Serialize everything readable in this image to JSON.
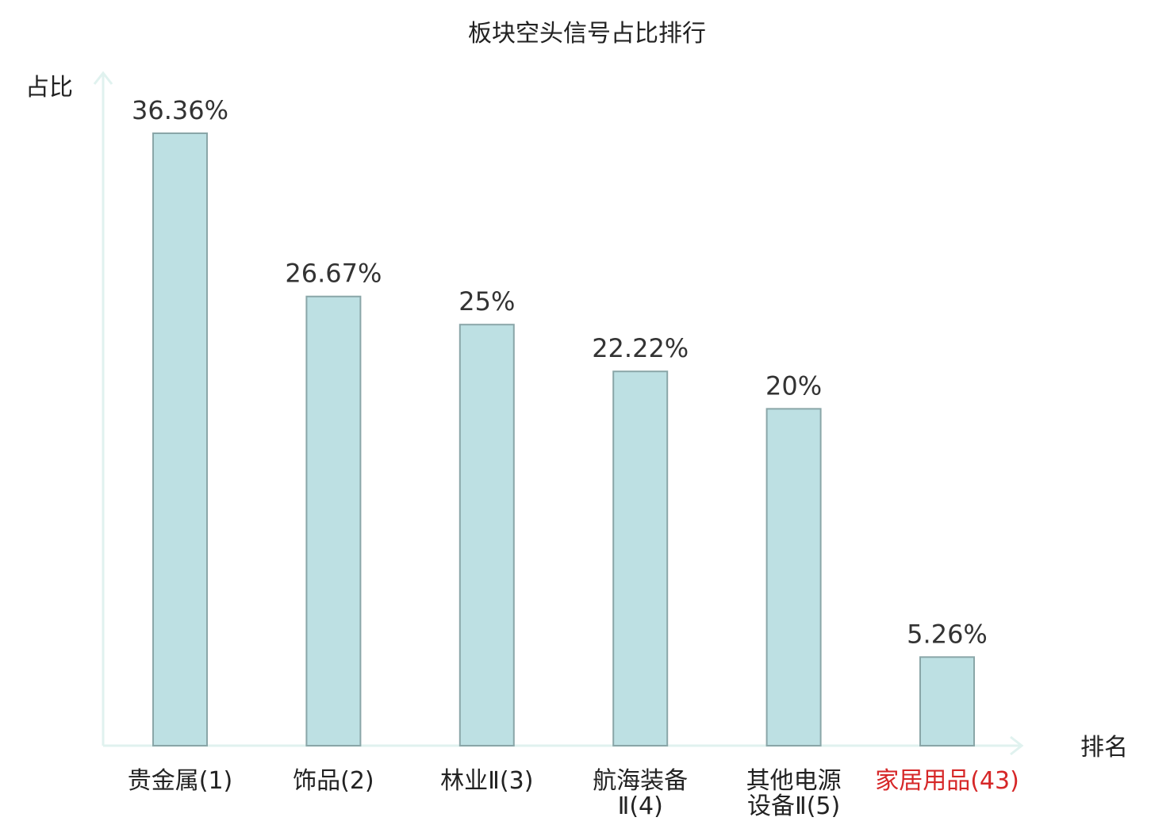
{
  "chart_data": {
    "type": "bar",
    "title": "板块空头信号占比排行",
    "xlabel": "排名",
    "ylabel": "占比",
    "categories": [
      {
        "lines": [
          "贵金属(1)"
        ]
      },
      {
        "lines": [
          "饰品(2)"
        ]
      },
      {
        "lines": [
          "林业Ⅱ(3)"
        ]
      },
      {
        "lines": [
          "航海装备",
          "Ⅱ(4)"
        ]
      },
      {
        "lines": [
          "其他电源",
          "设备Ⅱ(5)"
        ]
      },
      {
        "lines": [
          "家居用品(43)"
        ],
        "highlight": true
      }
    ],
    "values": [
      36.36,
      26.67,
      25,
      22.22,
      20,
      5.26
    ],
    "value_labels": [
      "36.36%",
      "26.67%",
      "25%",
      "22.22%",
      "20%",
      "5.26%"
    ],
    "ylim": [
      0,
      40
    ],
    "grid": false,
    "legend": "none",
    "colors": {
      "bar_fill": "#bde0e3",
      "bar_stroke": "#8aa6a8",
      "axis": "#e0f2ef",
      "highlight_text": "#d62728"
    }
  }
}
